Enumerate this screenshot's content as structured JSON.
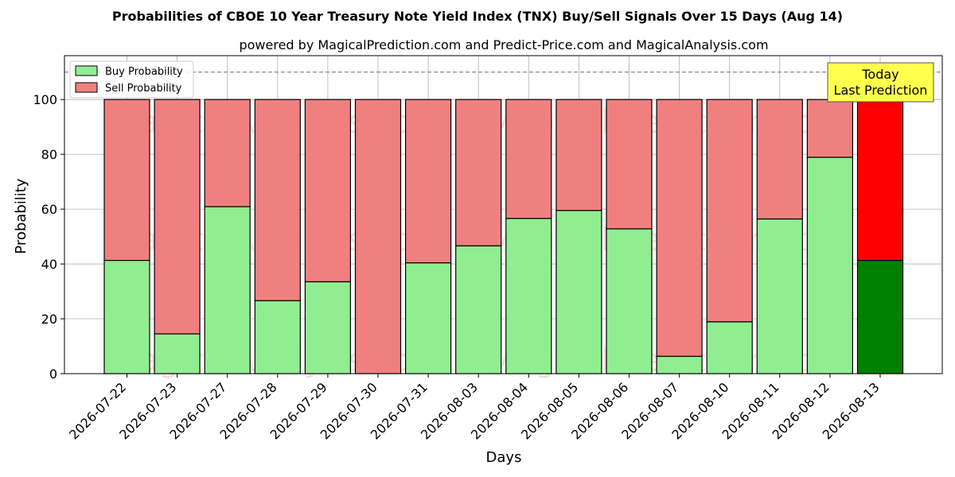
{
  "chart_data": {
    "type": "bar",
    "stacked": true,
    "title": "Probabilities of CBOE 10 Year Treasury Note Yield Index (TNX) Buy/Sell Signals Over 15 Days (Aug 14)",
    "subtitle": "powered by MagicalPrediction.com and Predict-Price.com and MagicalAnalysis.com",
    "xlabel": "Days",
    "ylabel": "Probability",
    "ylim": [
      0,
      116
    ],
    "yticks": [
      0,
      20,
      40,
      60,
      80,
      100
    ],
    "grid": true,
    "legend_position": "top-left",
    "reference_line": 110,
    "categories": [
      "2026-07-22",
      "2026-07-23",
      "2026-07-27",
      "2026-07-28",
      "2026-07-29",
      "2026-07-30",
      "2026-07-31",
      "2026-08-03",
      "2026-08-04",
      "2026-08-05",
      "2026-08-06",
      "2026-08-07",
      "2026-08-10",
      "2026-08-11",
      "2026-08-12",
      "2026-08-13"
    ],
    "series": [
      {
        "name": "Buy Probability",
        "color": "#90ee90",
        "values": [
          41.3,
          14.5,
          60.9,
          26.6,
          33.5,
          0,
          40.4,
          46.6,
          56.6,
          59.5,
          52.8,
          6.3,
          18.9,
          56.4,
          78.9,
          41.3
        ]
      },
      {
        "name": "Sell Probability",
        "color": "#f08080",
        "values": [
          58.7,
          85.5,
          39.1,
          73.4,
          66.5,
          100,
          59.6,
          53.4,
          43.4,
          40.5,
          47.2,
          93.7,
          81.1,
          43.6,
          21.1,
          58.7
        ]
      }
    ],
    "highlight": {
      "index": 15,
      "buy_color": "#008000",
      "sell_color": "#ff0000"
    },
    "annotation": {
      "lines": [
        "Today",
        "Last Prediction"
      ],
      "background": "#ffff4d"
    },
    "watermarks": [
      "MagicalAnalysis.com",
      "MagicalPrediction.com"
    ]
  }
}
